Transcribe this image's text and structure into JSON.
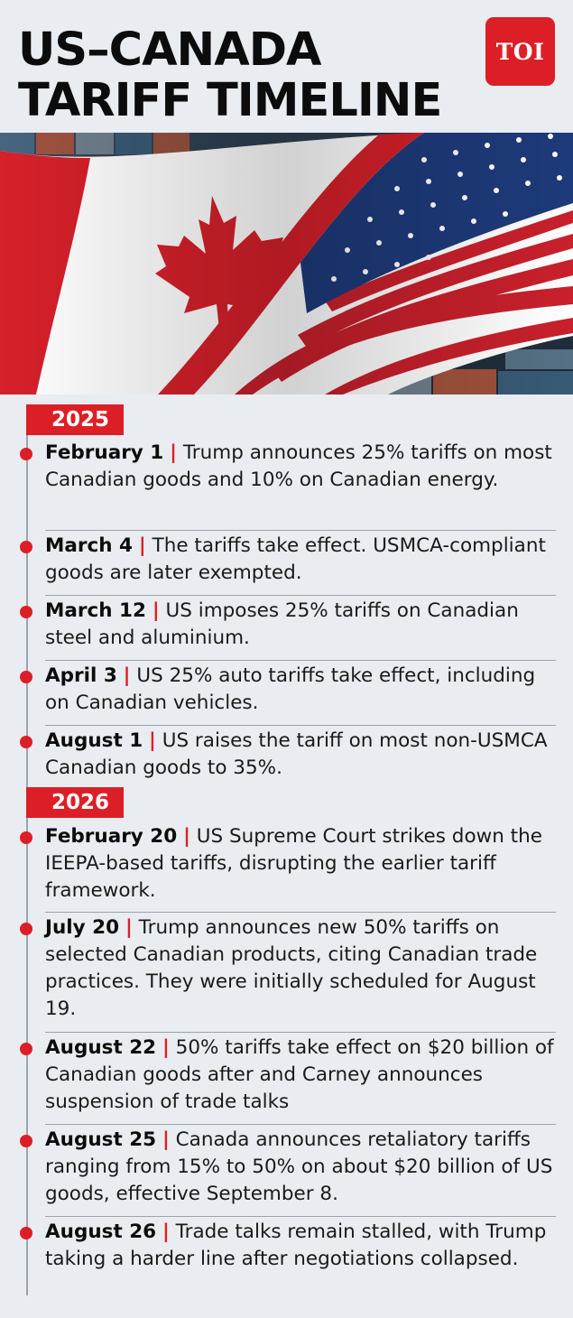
{
  "title": {
    "line1": "US–CANADA",
    "line2": "TARIFF TIMELINE"
  },
  "logo": {
    "text": "TOI"
  },
  "colors": {
    "accent": "#dc1f26",
    "background": "#e9ecf0",
    "text": "#111111"
  },
  "hero": {
    "image": "flags-of-canada-and-usa-over-shipping-containers"
  },
  "years": [
    {
      "label": "2025",
      "events": [
        {
          "date": "February 1",
          "separator": "|",
          "text": "Trump announces 25% tariffs on most Canadian goods and 10% on Canadian energy."
        },
        {
          "date": "March 4",
          "separator": "|",
          "text": "The tariffs take effect. USMCA-compliant goods are later exempted."
        },
        {
          "date": "March 12",
          "separator": "|",
          "text": "US imposes 25% tariffs on Canadian steel and aluminium."
        },
        {
          "date": "April 3",
          "separator": "|",
          "text": "US 25% auto tariffs take effect, including on Canadian vehicles."
        },
        {
          "date": "August 1",
          "separator": "|",
          "text": "US raises the tariff on most non-USMCA Canadian goods to 35%."
        }
      ]
    },
    {
      "label": "2026",
      "events": [
        {
          "date": "February 20",
          "separator": "|",
          "text": "US Supreme Court strikes down the IEEPA-based tariffs, disrupting the earlier tariff framework."
        },
        {
          "date": "July 20",
          "separator": "|",
          "text": "Trump announces new 50% tariffs on selected Canadian products, citing Canadian trade practices. They were initially scheduled for August 19."
        },
        {
          "date": "August 22",
          "separator": "|",
          "text": "50% tariffs take effect on $20 billion of Canadian goods after and Carney announces suspension of trade talks"
        },
        {
          "date": "August 25",
          "separator": "|",
          "text": "Canada announces retaliatory tariffs ranging from 15% to 50% on about $20 billion of US goods, effective September 8."
        },
        {
          "date": "August 26",
          "separator": "|",
          "text": "Trade talks remain stalled, with Trump taking a harder line after negotiations collapsed."
        }
      ]
    }
  ]
}
